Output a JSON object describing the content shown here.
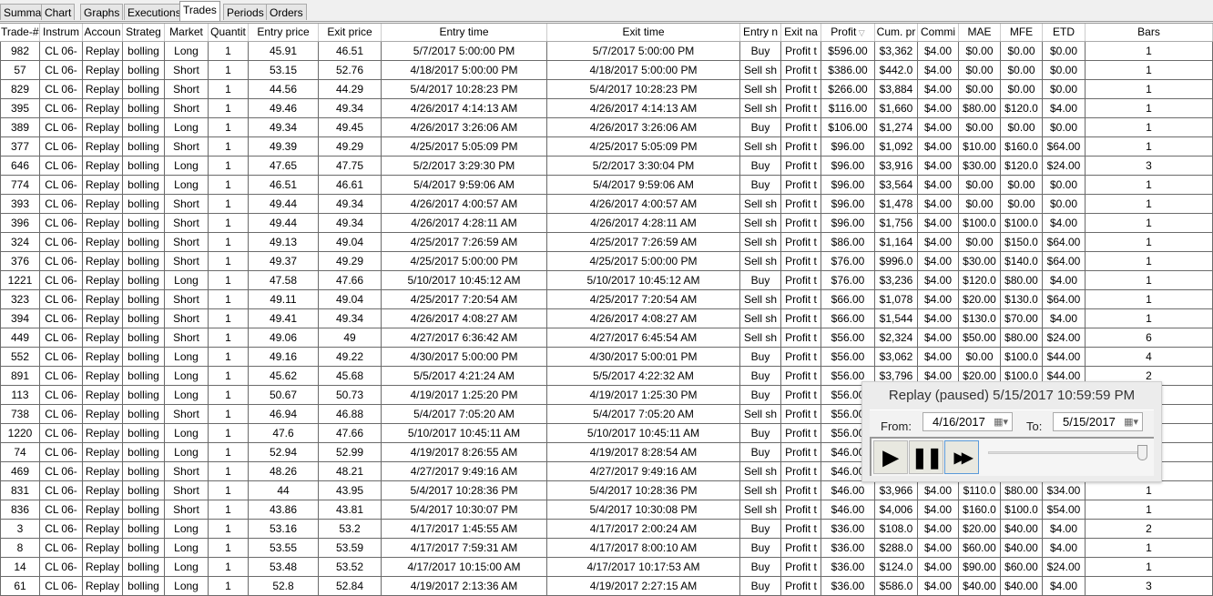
{
  "tabs": [
    "Summary",
    "Chart",
    "Graphs",
    "Executions",
    "Trades",
    "Periods",
    "Orders"
  ],
  "active_tab": "Trades",
  "columns": [
    "Trade-#",
    "Instrum",
    "Accoun",
    "Strateg",
    "Market",
    "Quantit",
    "Entry price",
    "Exit price",
    "Entry time",
    "Exit time",
    "Entry n",
    "Exit na",
    "Profit",
    "Cum. pr",
    "Commi",
    "MAE",
    "MFE",
    "ETD",
    "Bars"
  ],
  "sort_column": "Profit",
  "sort_icon": "sort-descending-triangle",
  "rows": [
    [
      "982",
      "CL 06-",
      "Replay",
      "bolling",
      "Long",
      "1",
      "45.91",
      "46.51",
      "5/7/2017 5:00:00 PM",
      "5/7/2017 5:00:00 PM",
      "Buy",
      "Profit t",
      "$596.00",
      "$3,362",
      "$4.00",
      "$0.00",
      "$0.00",
      "$0.00",
      "1"
    ],
    [
      "57",
      "CL 06-",
      "Replay",
      "bolling",
      "Short",
      "1",
      "53.15",
      "52.76",
      "4/18/2017 5:00:00 PM",
      "4/18/2017 5:00:00 PM",
      "Sell sh",
      "Profit t",
      "$386.00",
      "$442.0",
      "$4.00",
      "$0.00",
      "$0.00",
      "$0.00",
      "1"
    ],
    [
      "829",
      "CL 06-",
      "Replay",
      "bolling",
      "Short",
      "1",
      "44.56",
      "44.29",
      "5/4/2017 10:28:23 PM",
      "5/4/2017 10:28:23 PM",
      "Sell sh",
      "Profit t",
      "$266.00",
      "$3,884",
      "$4.00",
      "$0.00",
      "$0.00",
      "$0.00",
      "1"
    ],
    [
      "395",
      "CL 06-",
      "Replay",
      "bolling",
      "Short",
      "1",
      "49.46",
      "49.34",
      "4/26/2017 4:14:13 AM",
      "4/26/2017 4:14:13 AM",
      "Sell sh",
      "Profit t",
      "$116.00",
      "$1,660",
      "$4.00",
      "$80.00",
      "$120.0",
      "$4.00",
      "1"
    ],
    [
      "389",
      "CL 06-",
      "Replay",
      "bolling",
      "Long",
      "1",
      "49.34",
      "49.45",
      "4/26/2017 3:26:06 AM",
      "4/26/2017 3:26:06 AM",
      "Buy",
      "Profit t",
      "$106.00",
      "$1,274",
      "$4.00",
      "$0.00",
      "$0.00",
      "$0.00",
      "1"
    ],
    [
      "377",
      "CL 06-",
      "Replay",
      "bolling",
      "Short",
      "1",
      "49.39",
      "49.29",
      "4/25/2017 5:05:09 PM",
      "4/25/2017 5:05:09 PM",
      "Sell sh",
      "Profit t",
      "$96.00",
      "$1,092",
      "$4.00",
      "$10.00",
      "$160.0",
      "$64.00",
      "1"
    ],
    [
      "646",
      "CL 06-",
      "Replay",
      "bolling",
      "Long",
      "1",
      "47.65",
      "47.75",
      "5/2/2017 3:29:30 PM",
      "5/2/2017 3:30:04 PM",
      "Buy",
      "Profit t",
      "$96.00",
      "$3,916",
      "$4.00",
      "$30.00",
      "$120.0",
      "$24.00",
      "3"
    ],
    [
      "774",
      "CL 06-",
      "Replay",
      "bolling",
      "Long",
      "1",
      "46.51",
      "46.61",
      "5/4/2017 9:59:06 AM",
      "5/4/2017 9:59:06 AM",
      "Buy",
      "Profit t",
      "$96.00",
      "$3,564",
      "$4.00",
      "$0.00",
      "$0.00",
      "$0.00",
      "1"
    ],
    [
      "393",
      "CL 06-",
      "Replay",
      "bolling",
      "Short",
      "1",
      "49.44",
      "49.34",
      "4/26/2017 4:00:57 AM",
      "4/26/2017 4:00:57 AM",
      "Sell sh",
      "Profit t",
      "$96.00",
      "$1,478",
      "$4.00",
      "$0.00",
      "$0.00",
      "$0.00",
      "1"
    ],
    [
      "396",
      "CL 06-",
      "Replay",
      "bolling",
      "Short",
      "1",
      "49.44",
      "49.34",
      "4/26/2017 4:28:11 AM",
      "4/26/2017 4:28:11 AM",
      "Sell sh",
      "Profit t",
      "$96.00",
      "$1,756",
      "$4.00",
      "$100.0",
      "$100.0",
      "$4.00",
      "1"
    ],
    [
      "324",
      "CL 06-",
      "Replay",
      "bolling",
      "Short",
      "1",
      "49.13",
      "49.04",
      "4/25/2017 7:26:59 AM",
      "4/25/2017 7:26:59 AM",
      "Sell sh",
      "Profit t",
      "$86.00",
      "$1,164",
      "$4.00",
      "$0.00",
      "$150.0",
      "$64.00",
      "1"
    ],
    [
      "376",
      "CL 06-",
      "Replay",
      "bolling",
      "Short",
      "1",
      "49.37",
      "49.29",
      "4/25/2017 5:00:00 PM",
      "4/25/2017 5:00:00 PM",
      "Sell sh",
      "Profit t",
      "$76.00",
      "$996.0",
      "$4.00",
      "$30.00",
      "$140.0",
      "$64.00",
      "1"
    ],
    [
      "1221",
      "CL 06-",
      "Replay",
      "bolling",
      "Long",
      "1",
      "47.58",
      "47.66",
      "5/10/2017 10:45:12 AM",
      "5/10/2017 10:45:12 AM",
      "Buy",
      "Profit t",
      "$76.00",
      "$3,236",
      "$4.00",
      "$120.0",
      "$80.00",
      "$4.00",
      "1"
    ],
    [
      "323",
      "CL 06-",
      "Replay",
      "bolling",
      "Short",
      "1",
      "49.11",
      "49.04",
      "4/25/2017 7:20:54 AM",
      "4/25/2017 7:20:54 AM",
      "Sell sh",
      "Profit t",
      "$66.00",
      "$1,078",
      "$4.00",
      "$20.00",
      "$130.0",
      "$64.00",
      "1"
    ],
    [
      "394",
      "CL 06-",
      "Replay",
      "bolling",
      "Short",
      "1",
      "49.41",
      "49.34",
      "4/26/2017 4:08:27 AM",
      "4/26/2017 4:08:27 AM",
      "Sell sh",
      "Profit t",
      "$66.00",
      "$1,544",
      "$4.00",
      "$130.0",
      "$70.00",
      "$4.00",
      "1"
    ],
    [
      "449",
      "CL 06-",
      "Replay",
      "bolling",
      "Short",
      "1",
      "49.06",
      "49",
      "4/27/2017 6:36:42 AM",
      "4/27/2017 6:45:54 AM",
      "Sell sh",
      "Profit t",
      "$56.00",
      "$2,324",
      "$4.00",
      "$50.00",
      "$80.00",
      "$24.00",
      "6"
    ],
    [
      "552",
      "CL 06-",
      "Replay",
      "bolling",
      "Long",
      "1",
      "49.16",
      "49.22",
      "4/30/2017 5:00:00 PM",
      "4/30/2017 5:00:01 PM",
      "Buy",
      "Profit t",
      "$56.00",
      "$3,062",
      "$4.00",
      "$0.00",
      "$100.0",
      "$44.00",
      "4"
    ],
    [
      "891",
      "CL 06-",
      "Replay",
      "bolling",
      "Long",
      "1",
      "45.62",
      "45.68",
      "5/5/2017 4:21:24 AM",
      "5/5/2017 4:22:32 AM",
      "Buy",
      "Profit t",
      "$56.00",
      "$3,796",
      "$4.00",
      "$20.00",
      "$100.0",
      "$44.00",
      "2"
    ],
    [
      "113",
      "CL 06-",
      "Replay",
      "bolling",
      "Long",
      "1",
      "50.67",
      "50.73",
      "4/19/2017 1:25:20 PM",
      "4/19/2017 1:25:30 PM",
      "Buy",
      "Profit t",
      "$56.00",
      "",
      "",
      "",
      "",
      "",
      ""
    ],
    [
      "738",
      "CL 06-",
      "Replay",
      "bolling",
      "Short",
      "1",
      "46.94",
      "46.88",
      "5/4/2017 7:05:20 AM",
      "5/4/2017 7:05:20 AM",
      "Sell sh",
      "Profit t",
      "$56.00",
      "",
      "",
      "",
      "",
      "",
      ""
    ],
    [
      "1220",
      "CL 06-",
      "Replay",
      "bolling",
      "Long",
      "1",
      "47.6",
      "47.66",
      "5/10/2017 10:45:11 AM",
      "5/10/2017 10:45:11 AM",
      "Buy",
      "Profit t",
      "$56.00",
      "",
      "",
      "",
      "",
      "",
      ""
    ],
    [
      "74",
      "CL 06-",
      "Replay",
      "bolling",
      "Long",
      "1",
      "52.94",
      "52.99",
      "4/19/2017 8:26:55 AM",
      "4/19/2017 8:28:54 AM",
      "Buy",
      "Profit t",
      "$46.00",
      "",
      "",
      "",
      "",
      "",
      ""
    ],
    [
      "469",
      "CL 06-",
      "Replay",
      "bolling",
      "Short",
      "1",
      "48.26",
      "48.21",
      "4/27/2017 9:49:16 AM",
      "4/27/2017 9:49:16 AM",
      "Sell sh",
      "Profit t",
      "$46.00",
      "",
      "",
      "",
      "",
      "",
      ""
    ],
    [
      "831",
      "CL 06-",
      "Replay",
      "bolling",
      "Short",
      "1",
      "44",
      "43.95",
      "5/4/2017 10:28:36 PM",
      "5/4/2017 10:28:36 PM",
      "Sell sh",
      "Profit t",
      "$46.00",
      "$3,966",
      "$4.00",
      "$110.0",
      "$80.00",
      "$34.00",
      "1"
    ],
    [
      "836",
      "CL 06-",
      "Replay",
      "bolling",
      "Short",
      "1",
      "43.86",
      "43.81",
      "5/4/2017 10:30:07 PM",
      "5/4/2017 10:30:08 PM",
      "Sell sh",
      "Profit t",
      "$46.00",
      "$4,006",
      "$4.00",
      "$160.0",
      "$100.0",
      "$54.00",
      "1"
    ],
    [
      "3",
      "CL 06-",
      "Replay",
      "bolling",
      "Long",
      "1",
      "53.16",
      "53.2",
      "4/17/2017 1:45:55 AM",
      "4/17/2017 2:00:24 AM",
      "Buy",
      "Profit t",
      "$36.00",
      "$108.0",
      "$4.00",
      "$20.00",
      "$40.00",
      "$4.00",
      "2"
    ],
    [
      "8",
      "CL 06-",
      "Replay",
      "bolling",
      "Long",
      "1",
      "53.55",
      "53.59",
      "4/17/2017 7:59:31 AM",
      "4/17/2017 8:00:10 AM",
      "Buy",
      "Profit t",
      "$36.00",
      "$288.0",
      "$4.00",
      "$60.00",
      "$40.00",
      "$4.00",
      "1"
    ],
    [
      "14",
      "CL 06-",
      "Replay",
      "bolling",
      "Long",
      "1",
      "53.48",
      "53.52",
      "4/17/2017 10:15:00 AM",
      "4/17/2017 10:17:53 AM",
      "Buy",
      "Profit t",
      "$36.00",
      "$124.0",
      "$4.00",
      "$90.00",
      "$60.00",
      "$24.00",
      "1"
    ],
    [
      "61",
      "CL 06-",
      "Replay",
      "bolling",
      "Long",
      "1",
      "52.8",
      "52.84",
      "4/19/2017 2:13:36 AM",
      "4/19/2017 2:27:15 AM",
      "Buy",
      "Profit t",
      "$36.00",
      "$586.0",
      "$4.00",
      "$40.00",
      "$40.00",
      "$4.00",
      "3"
    ]
  ],
  "replay": {
    "title": "Replay (paused) 5/15/2017 10:59:59 PM",
    "from_label": "From:",
    "from_value": "4/16/2017",
    "to_label": "To:",
    "to_value": "5/15/2017",
    "speed_level": 1.0,
    "buttons": [
      "play-icon",
      "pause-icon",
      "fast-forward-icon"
    ]
  }
}
